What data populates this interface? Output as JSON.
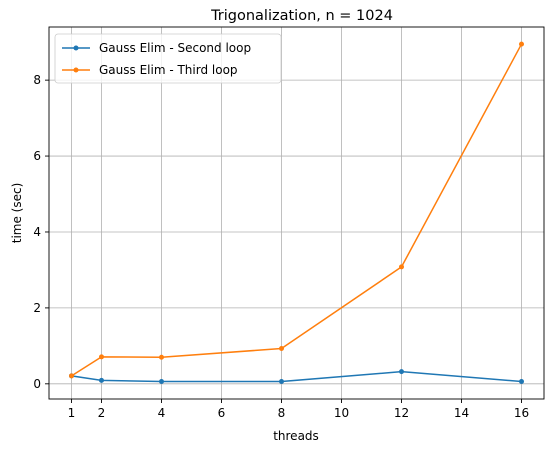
{
  "chart_data": {
    "type": "line",
    "title": "Trigonalization, n = 1024",
    "xlabel": "threads",
    "ylabel": "time (sec)",
    "xlim": [
      0.25,
      16.75
    ],
    "ylim": [
      -0.4,
      9.4
    ],
    "xticks": [
      1,
      2,
      4,
      6,
      8,
      10,
      12,
      14,
      16
    ],
    "yticks": [
      0,
      2,
      4,
      6,
      8
    ],
    "grid": true,
    "legend_position": "top-left",
    "x": [
      1,
      2,
      4,
      8,
      12,
      16
    ],
    "series": [
      {
        "name": "Gauss Elim - Second loop",
        "color": "#1f77b4",
        "marker": "dot",
        "values": [
          0.21,
          0.09,
          0.06,
          0.06,
          0.32,
          0.06
        ]
      },
      {
        "name": "Gauss Elim - Third loop",
        "color": "#ff7f0e",
        "marker": "dot",
        "values": [
          0.21,
          0.71,
          0.7,
          0.93,
          3.08,
          8.95
        ]
      }
    ]
  }
}
